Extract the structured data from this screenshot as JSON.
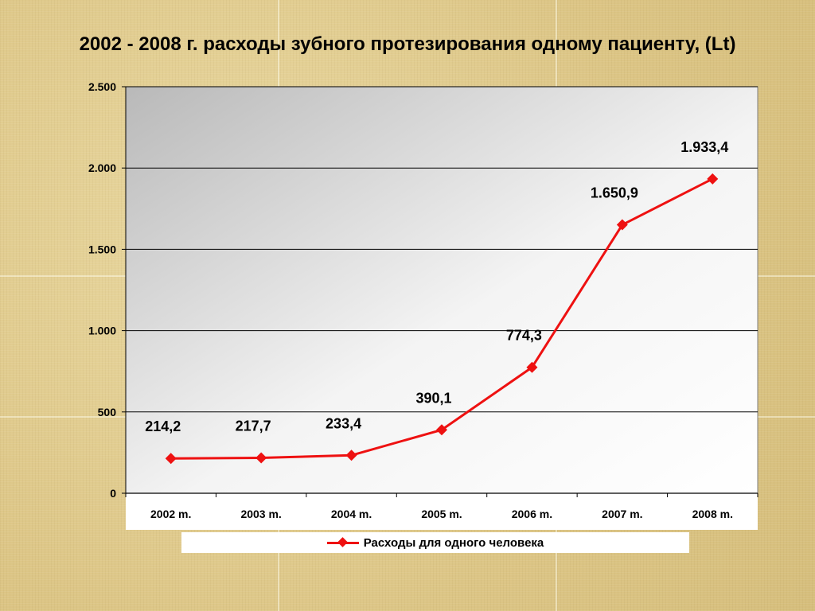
{
  "title": "2002 - 2008 г. расходы зубного протезирования одному пациенту, (Lt)",
  "chart_data": {
    "type": "line",
    "title": "2002 - 2008 г. расходы зубного протезирования одному пациенту, (Lt)",
    "categories": [
      "2002 m.",
      "2003 m.",
      "2004 m.",
      "2005 m.",
      "2006 m.",
      "2007 m.",
      "2008 m."
    ],
    "series": [
      {
        "name": "Расходы для одного человека",
        "values": [
          214.2,
          217.7,
          233.4,
          390.1,
          774.3,
          1650.9,
          1933.4
        ],
        "data_labels": [
          "214,2",
          "217,7",
          "233,4",
          "390,1",
          "774,3",
          "1.650,9",
          "1.933,4"
        ],
        "color": "#ee1111"
      }
    ],
    "ylim": [
      0,
      2500
    ],
    "yticks": [
      0,
      500,
      1000,
      1500,
      2000,
      2500
    ],
    "ytick_labels": [
      "0",
      "500",
      "1.000",
      "1.500",
      "2.000",
      "2.500"
    ],
    "grid": true,
    "legend": "bottom"
  }
}
